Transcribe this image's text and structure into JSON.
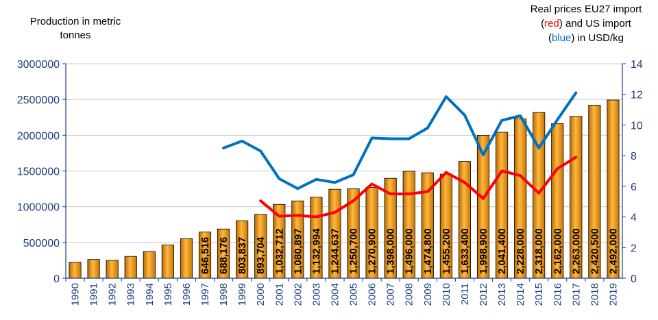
{
  "chart_data": {
    "type": "bar",
    "left_title_lines": [
      "Production in metric",
      "tonnes"
    ],
    "right_title": {
      "line1": "Real prices EU27 import",
      "line2_parts": [
        {
          "text": "(",
          "color": "#000000"
        },
        {
          "text": "red",
          "color": "#ff0000"
        },
        {
          "text": ") and US import",
          "color": "#000000"
        }
      ],
      "line3_parts": [
        {
          "text": "(",
          "color": "#000000"
        },
        {
          "text": "blue",
          "color": "#0070c0"
        },
        {
          "text": ") in USD/kg",
          "color": "#000000"
        }
      ]
    },
    "categories": [
      "1990",
      "1991",
      "1992",
      "1993",
      "1994",
      "1995",
      "1996",
      "1997",
      "1998",
      "1999",
      "2000",
      "2001",
      "2002",
      "2003",
      "2004",
      "2005",
      "2006",
      "2007",
      "2008",
      "2009",
      "2010",
      "2011",
      "2012",
      "2013",
      "2014",
      "2015",
      "2016",
      "2017",
      "2018",
      "2019"
    ],
    "production": [
      224000,
      262000,
      250000,
      305000,
      373000,
      466000,
      553000,
      646516,
      688176,
      803837,
      893704,
      1032712,
      1080897,
      1132994,
      1244637,
      1250700,
      1270900,
      1398000,
      1496000,
      1474800,
      1455200,
      1633400,
      1998900,
      2041400,
      2228000,
      2318000,
      2162000,
      2263000,
      2420500,
      2492000
    ],
    "data_labels": [
      "",
      "",
      "",
      "",
      "",
      "",
      "",
      "646,516",
      "688,176",
      "803,837",
      "893,704",
      "1,032,712",
      "1,080,897",
      "1,132,994",
      "1,244,637",
      "1,250,700",
      "1,270,900",
      "1,398,000",
      "1,496,000",
      "1,474,800",
      "1,455,200",
      "1,633,400",
      "1,998,900",
      "2,041,400",
      "2,228,000",
      "2,318,000",
      "2,162,000",
      "2,263,000",
      "2,420,500",
      "2,492,000"
    ],
    "y_left": {
      "min": 0,
      "max": 3000000,
      "step": 500000,
      "ticks": [
        "0",
        "500000",
        "1000000",
        "1500000",
        "2000000",
        "2500000",
        "3000000"
      ]
    },
    "y_right": {
      "min": 0,
      "max": 14,
      "step": 2,
      "ticks": [
        "0",
        "2",
        "4",
        "6",
        "8",
        "10",
        "12",
        "14"
      ]
    },
    "series_lines": [
      {
        "color": "#ff0000",
        "x_start": "2000",
        "values": [
          5.05,
          4.05,
          4.1,
          4.0,
          4.3,
          5.05,
          6.15,
          5.5,
          5.5,
          5.65,
          6.9,
          6.25,
          5.2,
          7.0,
          6.7,
          5.55,
          7.15,
          7.9
        ]
      },
      {
        "color": "#0070c0",
        "x_start": "1998",
        "values": [
          8.5,
          8.95,
          8.3,
          6.5,
          5.85,
          6.45,
          6.25,
          6.75,
          9.15,
          9.1,
          9.1,
          9.8,
          11.85,
          10.65,
          8.05,
          10.3,
          10.6,
          8.5,
          10.35,
          12.1
        ]
      }
    ],
    "bar_color": "#f7a120",
    "grid": true,
    "legend": "none"
  }
}
